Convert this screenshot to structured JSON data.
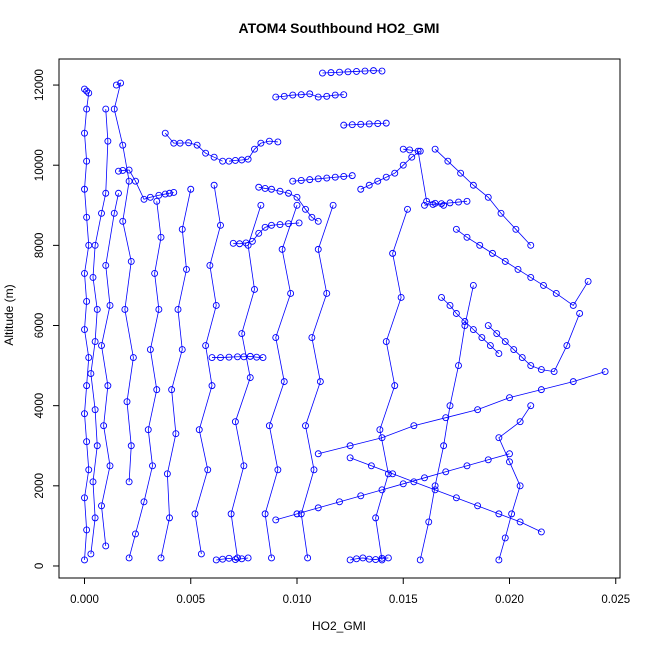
{
  "chart_data": {
    "type": "line",
    "title": "ATOM4 Southbound HO2_GMI",
    "xlabel": "HO2_GMI",
    "ylabel": "Altitude (m)",
    "xlim": [
      -0.0012,
      0.0252
    ],
    "ylim": [
      -300,
      12650
    ],
    "x_ticks": [
      0.0,
      0.005,
      0.01,
      0.015,
      0.02,
      0.025
    ],
    "x_tick_labels": [
      "0.000",
      "0.005",
      "0.010",
      "0.015",
      "0.020",
      "0.025"
    ],
    "y_ticks": [
      0,
      2000,
      4000,
      6000,
      8000,
      10000,
      12000
    ],
    "y_tick_labels": [
      "0",
      "2000",
      "4000",
      "6000",
      "8000",
      "10000",
      "12000"
    ],
    "color": "#0000ff",
    "marker": "open-circle",
    "series": [
      {
        "x": [
          0.0,
          0.0001,
          0.0,
          0.0002,
          0.0001,
          0.0,
          0.0001,
          0.0002,
          0.0,
          0.0001,
          0.0,
          0.0002,
          0.0001,
          0.0,
          0.0001,
          0.0,
          0.0001,
          0.0002,
          0.0,
          0.0001
        ],
        "y": [
          150,
          900,
          1700,
          2400,
          3100,
          3800,
          4500,
          5200,
          5900,
          6600,
          7300,
          8000,
          8700,
          9400,
          10100,
          10800,
          11400,
          11800,
          11900,
          11850
        ]
      },
      {
        "x": [
          0.0003,
          0.0005,
          0.0004,
          0.0006,
          0.0005,
          0.0003,
          0.0005,
          0.0006,
          0.0004,
          0.0005,
          0.0008,
          0.001,
          0.0011,
          0.001
        ],
        "y": [
          300,
          1200,
          2100,
          3000,
          3900,
          4800,
          5600,
          6400,
          7200,
          8000,
          8800,
          9300,
          10600,
          11400
        ]
      },
      {
        "x": [
          0.001,
          0.0008,
          0.0012,
          0.0009,
          0.0011,
          0.0008,
          0.0012,
          0.001,
          0.0014,
          0.0016
        ],
        "y": [
          500,
          1500,
          2500,
          3500,
          4500,
          5500,
          6500,
          7500,
          8800,
          9300
        ]
      },
      {
        "x": [
          0.0016,
          0.0018,
          0.0021,
          0.0024,
          0.0028,
          0.0031,
          0.0035,
          0.0038,
          0.004,
          0.0042
        ],
        "y": [
          9850,
          9870,
          9880,
          9600,
          9150,
          9200,
          9250,
          9280,
          9300,
          9320
        ]
      },
      {
        "x": [
          0.0015,
          0.0017,
          0.0014,
          0.0018,
          0.0021,
          0.0018,
          0.0022,
          0.0019,
          0.0023,
          0.002,
          0.0022,
          0.0021
        ],
        "y": [
          12000,
          12050,
          11400,
          10500,
          9600,
          8600,
          7600,
          6400,
          5200,
          4100,
          3000,
          2100
        ]
      },
      {
        "x": [
          0.0021,
          0.0024,
          0.0028,
          0.0032,
          0.003,
          0.0034,
          0.0031,
          0.0035,
          0.0033,
          0.0036,
          0.0034
        ],
        "y": [
          200,
          800,
          1600,
          2500,
          3400,
          4400,
          5400,
          6400,
          7300,
          8200,
          9100
        ]
      },
      {
        "x": [
          0.0038,
          0.0042,
          0.0045,
          0.0049,
          0.0053,
          0.0057,
          0.0061,
          0.0065
        ],
        "y": [
          10800,
          10550,
          10550,
          10560,
          10500,
          10300,
          10200,
          10100
        ]
      },
      {
        "x": [
          0.0036,
          0.004,
          0.0039,
          0.0043,
          0.0041,
          0.0046,
          0.0044,
          0.0048,
          0.0046,
          0.005
        ],
        "y": [
          200,
          1200,
          2300,
          3300,
          4400,
          5400,
          6400,
          7400,
          8400,
          9400
        ]
      },
      {
        "x": [
          0.0055,
          0.0052,
          0.0058,
          0.0054,
          0.006,
          0.0057,
          0.0062,
          0.0059,
          0.0064,
          0.0061
        ],
        "y": [
          300,
          1300,
          2400,
          3400,
          4500,
          5500,
          6500,
          7500,
          8500,
          9500
        ]
      },
      {
        "x": [
          0.006,
          0.0064,
          0.0068,
          0.0072,
          0.0075,
          0.0078,
          0.0081,
          0.0084
        ],
        "y": [
          5200,
          5200,
          5210,
          5220,
          5220,
          5230,
          5210,
          5200
        ]
      },
      {
        "x": [
          0.0068,
          0.0071,
          0.0074,
          0.0077,
          0.008,
          0.0083,
          0.0087,
          0.0091
        ],
        "y": [
          10100,
          10120,
          10130,
          10150,
          10400,
          10550,
          10600,
          10580
        ]
      },
      {
        "x": [
          0.007,
          0.0073,
          0.0076,
          0.0079,
          0.0082,
          0.0085,
          0.0088,
          0.0092,
          0.0096,
          0.0101
        ],
        "y": [
          8050,
          8040,
          8060,
          8100,
          8300,
          8450,
          8500,
          8520,
          8540,
          8560
        ]
      },
      {
        "x": [
          0.0072,
          0.0069,
          0.0075,
          0.0071,
          0.0078,
          0.0074,
          0.008,
          0.0077,
          0.0083
        ],
        "y": [
          200,
          1300,
          2500,
          3600,
          4700,
          5800,
          6900,
          8000,
          9000
        ]
      },
      {
        "x": [
          0.0082,
          0.0085,
          0.0088,
          0.0092,
          0.0096,
          0.01,
          0.0104,
          0.0107,
          0.011
        ],
        "y": [
          9450,
          9420,
          9400,
          9350,
          9300,
          9200,
          8900,
          8700,
          8600
        ]
      },
      {
        "x": [
          0.009,
          0.0094,
          0.0098,
          0.0102,
          0.0106,
          0.011,
          0.0114,
          0.0118,
          0.0122
        ],
        "y": [
          11700,
          11720,
          11750,
          11760,
          11780,
          11700,
          11720,
          11750,
          11760
        ]
      },
      {
        "x": [
          0.0098,
          0.0102,
          0.0106,
          0.011,
          0.0114,
          0.0118,
          0.0122,
          0.0126
        ],
        "y": [
          9600,
          9620,
          9640,
          9660,
          9680,
          9700,
          9720,
          9740
        ]
      },
      {
        "x": [
          0.0088,
          0.0085,
          0.0091,
          0.0087,
          0.0094,
          0.009,
          0.0097,
          0.0093,
          0.01
        ],
        "y": [
          200,
          1300,
          2400,
          3500,
          4600,
          5700,
          6800,
          7900,
          9000
        ]
      },
      {
        "x": [
          0.0112,
          0.0116,
          0.012,
          0.0124,
          0.0128,
          0.0132,
          0.0136,
          0.014
        ],
        "y": [
          12300,
          12310,
          12320,
          12330,
          12340,
          12350,
          12360,
          12350
        ]
      },
      {
        "x": [
          0.0105,
          0.0102,
          0.0108,
          0.0104,
          0.0111,
          0.0107,
          0.0114,
          0.011,
          0.0117
        ],
        "y": [
          200,
          1300,
          2400,
          3500,
          4600,
          5700,
          6800,
          7900,
          9000
        ]
      },
      {
        "x": [
          0.0122,
          0.0126,
          0.013,
          0.0134,
          0.0138,
          0.0142
        ],
        "y": [
          11000,
          11010,
          11020,
          11030,
          11040,
          11050
        ]
      },
      {
        "x": [
          0.013,
          0.0134,
          0.0138,
          0.0142,
          0.0146,
          0.015,
          0.0154,
          0.0158
        ],
        "y": [
          9400,
          9500,
          9600,
          9700,
          9800,
          10000,
          10200,
          10350
        ]
      },
      {
        "x": [
          0.014,
          0.0137,
          0.0143,
          0.0139,
          0.0146,
          0.0142,
          0.0149,
          0.0145,
          0.0152
        ],
        "y": [
          150,
          1200,
          2300,
          3400,
          4500,
          5600,
          6700,
          7800,
          8900
        ]
      },
      {
        "x": [
          0.015,
          0.0153,
          0.0157,
          0.0161,
          0.0165,
          0.0169
        ],
        "y": [
          10400,
          10380,
          10350,
          9100,
          9050,
          9000
        ]
      },
      {
        "x": [
          0.016,
          0.0164,
          0.0168,
          0.0172,
          0.0176,
          0.018
        ],
        "y": [
          9000,
          9020,
          9040,
          9060,
          9080,
          9100
        ]
      },
      {
        "x": [
          0.0158,
          0.0162,
          0.0165,
          0.0169,
          0.0172,
          0.0176,
          0.0179,
          0.0183
        ],
        "y": [
          150,
          1100,
          2000,
          3000,
          4000,
          5000,
          6000,
          7000
        ]
      },
      {
        "x": [
          0.0165,
          0.0171,
          0.0177,
          0.0183,
          0.019,
          0.0196,
          0.0203,
          0.021
        ],
        "y": [
          10400,
          10100,
          9800,
          9500,
          9200,
          8800,
          8400,
          8000
        ]
      },
      {
        "x": [
          0.0175,
          0.018,
          0.0186,
          0.0192,
          0.0198,
          0.0204,
          0.021,
          0.0216,
          0.0222,
          0.023,
          0.0237
        ],
        "y": [
          8400,
          8200,
          8000,
          7800,
          7600,
          7400,
          7200,
          7000,
          6800,
          6500,
          7100
        ]
      },
      {
        "x": [
          0.019,
          0.0194,
          0.0198,
          0.0202,
          0.0206,
          0.021,
          0.0215,
          0.0221,
          0.0227,
          0.0233
        ],
        "y": [
          6000,
          5800,
          5600,
          5400,
          5200,
          5000,
          4900,
          4850,
          5500,
          6300
        ]
      },
      {
        "x": [
          0.0245,
          0.023,
          0.0215,
          0.02,
          0.0185,
          0.017,
          0.0155,
          0.014,
          0.0125,
          0.011
        ],
        "y": [
          4850,
          4600,
          4400,
          4200,
          3900,
          3700,
          3500,
          3200,
          3000,
          2800
        ]
      },
      {
        "x": [
          0.02,
          0.019,
          0.018,
          0.017,
          0.016,
          0.015,
          0.014,
          0.013,
          0.012,
          0.011,
          0.01,
          0.009
        ],
        "y": [
          2800,
          2650,
          2500,
          2350,
          2200,
          2050,
          1900,
          1750,
          1600,
          1450,
          1300,
          1150
        ]
      },
      {
        "x": [
          0.0195,
          0.0198,
          0.0201,
          0.0205,
          0.02,
          0.0195,
          0.0205,
          0.021
        ],
        "y": [
          150,
          700,
          1300,
          2000,
          2600,
          3200,
          3600,
          4000
        ]
      },
      {
        "x": [
          0.0215,
          0.0205,
          0.0195,
          0.0185,
          0.0175,
          0.0165,
          0.0155,
          0.0145,
          0.0135,
          0.0125
        ],
        "y": [
          850,
          1100,
          1300,
          1500,
          1700,
          1900,
          2100,
          2300,
          2500,
          2700
        ]
      },
      {
        "x": [
          0.0168,
          0.0172,
          0.0175,
          0.0179,
          0.0183,
          0.0187,
          0.0191,
          0.0195
        ],
        "y": [
          6700,
          6500,
          6300,
          6100,
          5900,
          5700,
          5500,
          5300
        ]
      },
      {
        "x": [
          0.0125,
          0.0128,
          0.0131,
          0.0134,
          0.0137,
          0.014,
          0.0143
        ],
        "y": [
          150,
          180,
          200,
          170,
          160,
          190,
          200
        ]
      },
      {
        "x": [
          0.0062,
          0.0065,
          0.0068,
          0.0071,
          0.0074,
          0.0077
        ],
        "y": [
          150,
          170,
          190,
          160,
          180,
          200
        ]
      }
    ]
  }
}
